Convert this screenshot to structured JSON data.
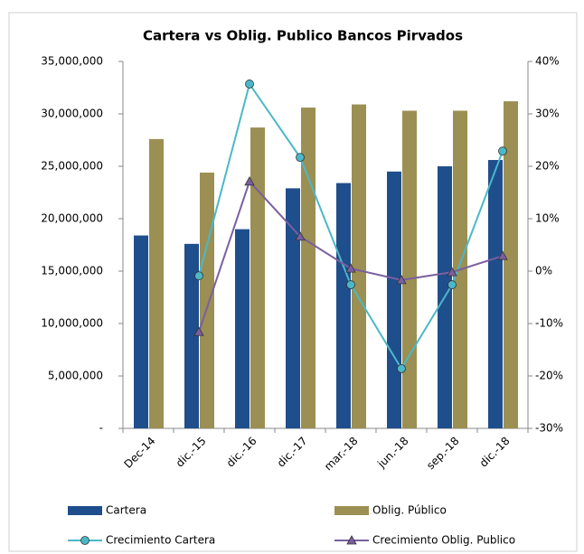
{
  "chart_data": {
    "type": "bar_line",
    "title": "Cartera vs Oblig. Publico Bancos Pirvados",
    "categories": [
      "Dec-14",
      "dic.-15",
      "dic.-16",
      "dic.-17",
      "mar.-18",
      "jun.-18",
      "sep.-18",
      "dic.-18"
    ],
    "series": [
      {
        "name": "Cartera",
        "type": "bar",
        "color": "#1f4e8c",
        "values": [
          18400000,
          17600000,
          19000000,
          22900000,
          23400000,
          24500000,
          25000000,
          25600000
        ]
      },
      {
        "name": "Oblig. Público",
        "type": "bar",
        "color": "#9b8f53",
        "values": [
          27600000,
          24400000,
          28700000,
          30600000,
          30900000,
          30300000,
          30300000,
          31200000
        ]
      },
      {
        "name": "Crecimiento Cartera",
        "type": "line",
        "axis": "y2",
        "marker": "circle",
        "color": "#4bb8c8",
        "values": [
          null,
          -0.9,
          35.7,
          21.7,
          -2.6,
          -18.6,
          -2.6,
          22.9
        ]
      },
      {
        "name": "Crecimiento Oblig. Publico",
        "type": "line",
        "axis": "y2",
        "marker": "triangle",
        "color": "#7a5fa0",
        "values": [
          null,
          -11.6,
          17.1,
          6.6,
          0.5,
          -1.7,
          -0.2,
          2.9
        ]
      }
    ],
    "ylim": [
      0,
      35000000
    ],
    "yticks": [
      {
        "value": 0,
        "label": "-"
      },
      {
        "value": 5000000,
        "label": "5,000,000"
      },
      {
        "value": 10000000,
        "label": "10,000,000"
      },
      {
        "value": 15000000,
        "label": "15,000,000"
      },
      {
        "value": 20000000,
        "label": "20,000,000"
      },
      {
        "value": 25000000,
        "label": "25,000,000"
      },
      {
        "value": 30000000,
        "label": "30,000,000"
      },
      {
        "value": 35000000,
        "label": "35,000,000"
      }
    ],
    "y2lim": [
      -30,
      40
    ],
    "y2ticks": [
      {
        "value": -30,
        "label": "-30%"
      },
      {
        "value": -20,
        "label": "-20%"
      },
      {
        "value": -10,
        "label": "-10%"
      },
      {
        "value": 0,
        "label": "0%"
      },
      {
        "value": 10,
        "label": "10%"
      },
      {
        "value": 20,
        "label": "20%"
      },
      {
        "value": 30,
        "label": "30%"
      },
      {
        "value": 40,
        "label": "40%"
      }
    ],
    "grid": false
  }
}
